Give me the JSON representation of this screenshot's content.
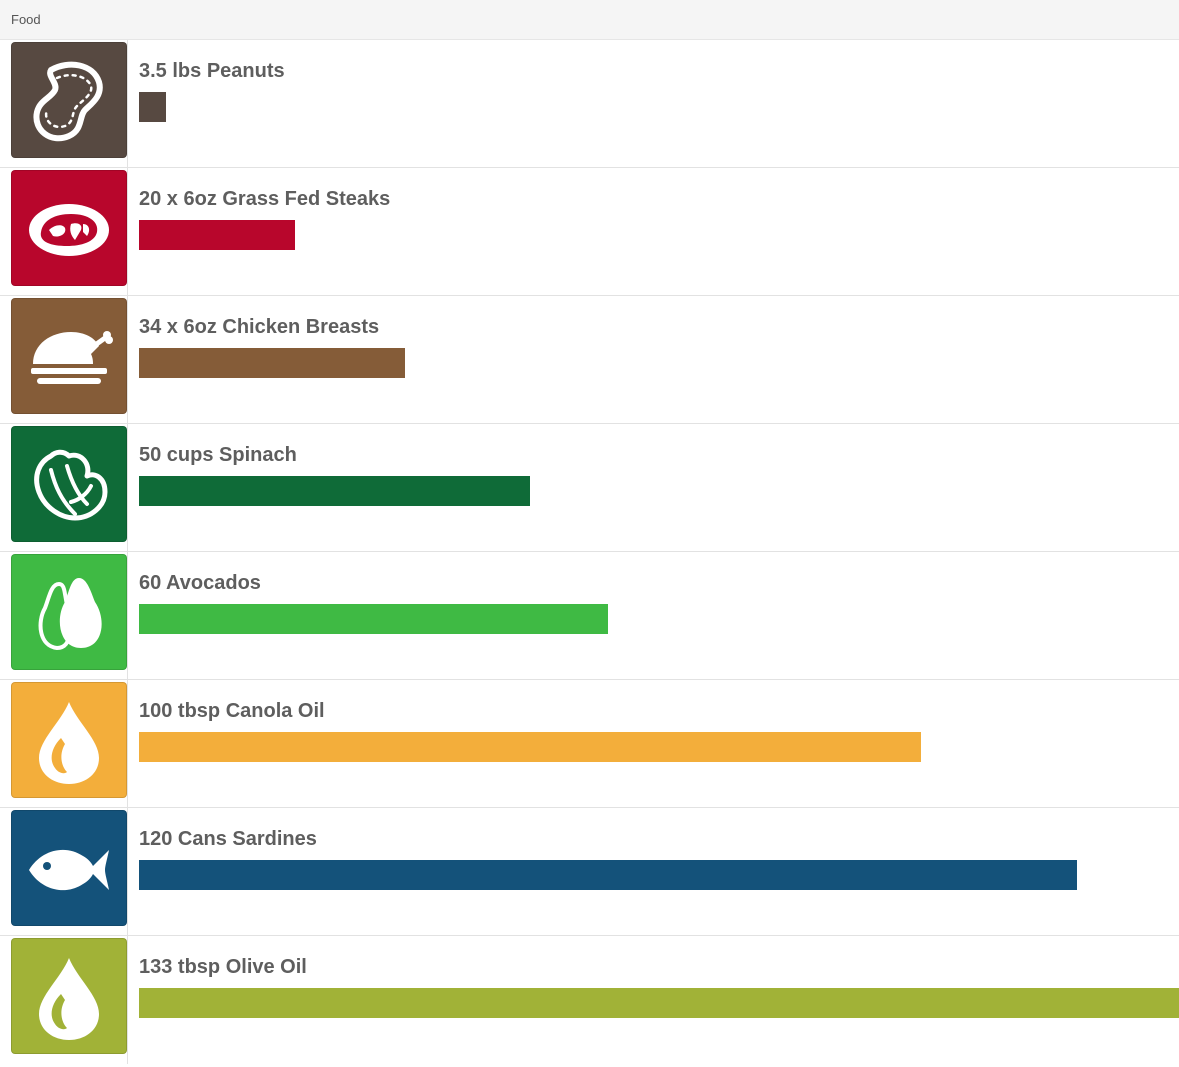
{
  "header": {
    "title": "Food"
  },
  "chart_data": {
    "type": "bar",
    "orientation": "horizontal",
    "max_value": 133,
    "items": [
      {
        "label": "3.5 lbs Peanuts",
        "value": 3.5,
        "color": "#574941",
        "icon": "peanut-icon"
      },
      {
        "label": "20 x 6oz Grass Fed Steaks",
        "value": 20,
        "color": "#b8062c",
        "icon": "steak-icon"
      },
      {
        "label": "34 x 6oz Chicken Breasts",
        "value": 34,
        "color": "#855c38",
        "icon": "roast-chicken-icon"
      },
      {
        "label": "50 cups Spinach",
        "value": 50,
        "color": "#0f6b38",
        "icon": "spinach-icon"
      },
      {
        "label": "60 Avocados",
        "value": 60,
        "color": "#3fba44",
        "icon": "avocado-icon"
      },
      {
        "label": "100 tbsp Canola Oil",
        "value": 100,
        "color": "#f3ae3b",
        "icon": "oil-drop-icon"
      },
      {
        "label": "120 Cans Sardines",
        "value": 120,
        "color": "#14527a",
        "icon": "fish-icon"
      },
      {
        "label": "133 tbsp Olive Oil",
        "value": 133,
        "color": "#a1b237",
        "icon": "oil-drop-icon"
      }
    ]
  }
}
